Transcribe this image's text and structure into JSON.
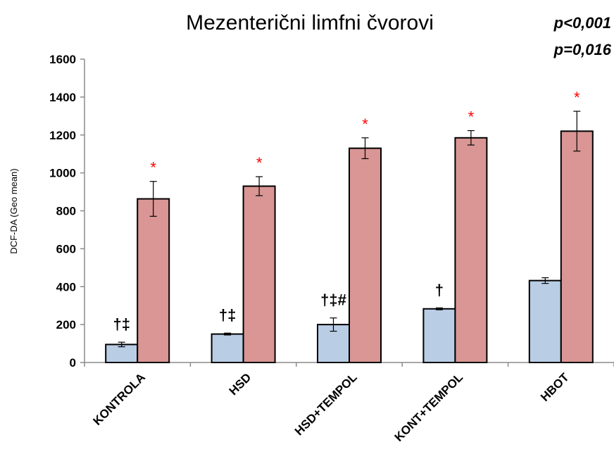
{
  "chart_data": {
    "type": "bar",
    "title": "Mezenterični limfni čvorovi",
    "ylabel": "DCF-DA (Geo mean)",
    "xlabel": "",
    "ylim": [
      0,
      1600
    ],
    "yticks": [
      0,
      200,
      400,
      600,
      800,
      1000,
      1200,
      1400,
      1600
    ],
    "grid": false,
    "categories": [
      "KONTROLA",
      "HSD",
      "HSD+TEMPOL",
      "KONT+TEMPOL",
      "HBOT"
    ],
    "series": [
      {
        "color": "#b9cde5",
        "values": [
          95,
          150,
          200,
          283,
          432
        ],
        "errors": [
          12,
          5,
          35,
          5,
          15
        ]
      },
      {
        "color": "#d99694",
        "values": [
          863,
          930,
          1130,
          1185,
          1220
        ],
        "errors": [
          92,
          50,
          55,
          38,
          105
        ]
      }
    ],
    "annotations": [
      {
        "category": "KONTROLA",
        "series": 0,
        "text": "†‡",
        "color": "#000000"
      },
      {
        "category": "HSD",
        "series": 0,
        "text": "†‡",
        "color": "#000000"
      },
      {
        "category": "HSD+TEMPOL",
        "series": 0,
        "text": "†‡#",
        "color": "#000000"
      },
      {
        "category": "KONT+TEMPOL",
        "series": 0,
        "text": "†",
        "color": "#000000"
      },
      {
        "category": "KONTROLA",
        "series": 1,
        "text": "*",
        "color": "#ff0000"
      },
      {
        "category": "HSD",
        "series": 1,
        "text": "*",
        "color": "#ff0000"
      },
      {
        "category": "HSD+TEMPOL",
        "series": 1,
        "text": "*",
        "color": "#ff0000"
      },
      {
        "category": "KONT+TEMPOL",
        "series": 1,
        "text": "*",
        "color": "#ff0000"
      },
      {
        "category": "HBOT",
        "series": 1,
        "text": "*",
        "color": "#ff0000"
      }
    ],
    "p_values": [
      {
        "text": "p<0,001",
        "color": "#376092"
      },
      {
        "text": "p=0,016",
        "color": "#c00000"
      }
    ]
  }
}
